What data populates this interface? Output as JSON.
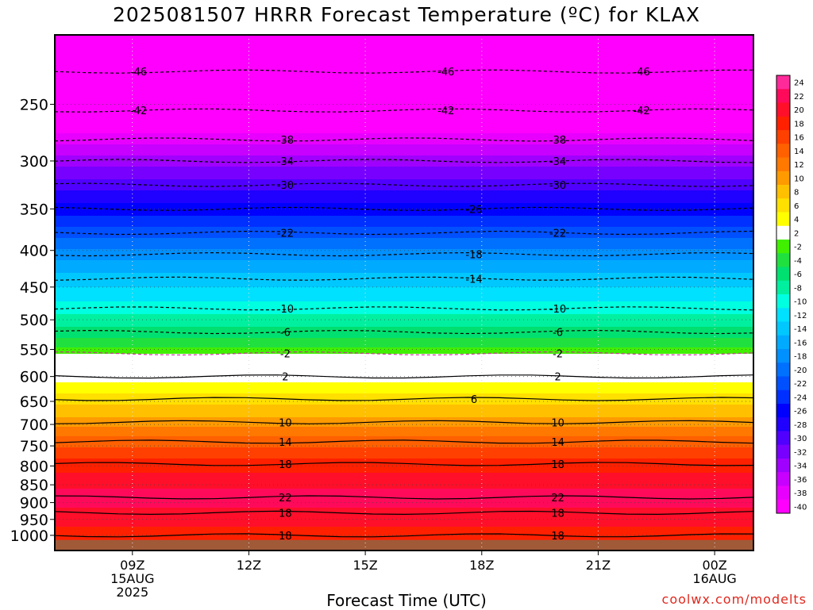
{
  "title": "2025081507 HRRR Forecast Temperature (ºC) for KLAX",
  "credit": "coolwx.com/modelts",
  "chart_data": {
    "type": "heatmap",
    "title": "2025081507 HRRR Forecast Temperature (ºC) for KLAX",
    "xlabel": "Forecast Time (UTC)",
    "ylabel": "",
    "x_range_hours": [
      7,
      25
    ],
    "y_axis": {
      "scale": "log",
      "top_mb": 200,
      "bottom_mb": 1050,
      "ticks": [
        250,
        300,
        350,
        400,
        450,
        500,
        550,
        600,
        650,
        700,
        750,
        800,
        850,
        900,
        950,
        1000
      ]
    },
    "x_ticks": [
      {
        "hour": 9,
        "label": "09Z",
        "sub1": "15AUG",
        "sub2": "2025"
      },
      {
        "hour": 12,
        "label": "12Z",
        "sub1": "",
        "sub2": ""
      },
      {
        "hour": 15,
        "label": "15Z",
        "sub1": "",
        "sub2": ""
      },
      {
        "hour": 18,
        "label": "18Z",
        "sub1": "",
        "sub2": ""
      },
      {
        "hour": 21,
        "label": "21Z",
        "sub1": "",
        "sub2": ""
      },
      {
        "hour": 24,
        "label": "00Z",
        "sub1": "16AUG",
        "sub2": ""
      }
    ],
    "grid": true,
    "colorbar": {
      "placement": "right",
      "labels": [
        "24",
        "22",
        "20",
        "18",
        "16",
        "14",
        "12",
        "10",
        "8",
        "6",
        "4",
        "2",
        "-2",
        "-4",
        "-6",
        "-8",
        "-10",
        "-12",
        "-14",
        "-16",
        "-18",
        "-20",
        "-22",
        "-24",
        "-26",
        "-28",
        "-30",
        "-32",
        "-34",
        "-36",
        "-38",
        "-40"
      ],
      "colors": [
        "#ff2a9a",
        "#ff0a5a",
        "#ff0f2a",
        "#ff2000",
        "#ff4000",
        "#ff6000",
        "#ff7800",
        "#ff9a00",
        "#ffc000",
        "#ffe000",
        "#ffff00",
        "#ffffff",
        "#40f000",
        "#20e040",
        "#00e070",
        "#00f0a0",
        "#00ffe0",
        "#00e0ff",
        "#00c8ff",
        "#00aaff",
        "#0090ff",
        "#0070ff",
        "#0050ff",
        "#0030ff",
        "#0000ff",
        "#2000ff",
        "#5000ff",
        "#7800ff",
        "#a000ff",
        "#c800ff",
        "#e800ff",
        "#ff00ff"
      ]
    },
    "ground": {
      "color": "#a05a38",
      "pressure_mb": 1015
    },
    "contours": [
      {
        "value": -46,
        "pressure_mb": 225,
        "labels": [
          "-46",
          "-46",
          "-46"
        ]
      },
      {
        "value": -42,
        "pressure_mb": 255,
        "labels": [
          "-42",
          "-42",
          "-42"
        ]
      },
      {
        "value": -38,
        "pressure_mb": 280,
        "labels": [
          "-38",
          "-38"
        ]
      },
      {
        "value": -34,
        "pressure_mb": 300,
        "labels": [
          "-34",
          "-34"
        ]
      },
      {
        "value": -30,
        "pressure_mb": 324,
        "labels": [
          "-30",
          "-30"
        ]
      },
      {
        "value": -26,
        "pressure_mb": 350,
        "labels": [
          "-26"
        ]
      },
      {
        "value": -22,
        "pressure_mb": 378,
        "labels": [
          "-22",
          "-22"
        ]
      },
      {
        "value": -18,
        "pressure_mb": 405,
        "labels": [
          "-18"
        ]
      },
      {
        "value": -14,
        "pressure_mb": 438,
        "labels": [
          "-14"
        ]
      },
      {
        "value": -10,
        "pressure_mb": 482,
        "labels": [
          "-10",
          "-10"
        ]
      },
      {
        "value": -6,
        "pressure_mb": 520,
        "labels": [
          "-6",
          "-6"
        ]
      },
      {
        "value": -2,
        "pressure_mb": 557,
        "labels": [
          "-2",
          "-2"
        ]
      },
      {
        "value": 2,
        "pressure_mb": 600,
        "labels": [
          "2",
          "2"
        ]
      },
      {
        "value": 6,
        "pressure_mb": 645,
        "labels": [
          "6"
        ]
      },
      {
        "value": 10,
        "pressure_mb": 695,
        "labels": [
          "10",
          "10"
        ]
      },
      {
        "value": 14,
        "pressure_mb": 740,
        "labels": [
          "14",
          "14"
        ]
      },
      {
        "value": 18,
        "pressure_mb": 795,
        "labels": [
          "18",
          "18"
        ]
      },
      {
        "value": 22,
        "pressure_mb": 885,
        "labels": [
          "22",
          "22"
        ]
      },
      {
        "value": 18,
        "pressure_mb": 930,
        "labels": [
          "18",
          "18"
        ]
      },
      {
        "value": 18,
        "pressure_mb": 1000,
        "labels": [
          "18",
          "18"
        ]
      }
    ]
  }
}
